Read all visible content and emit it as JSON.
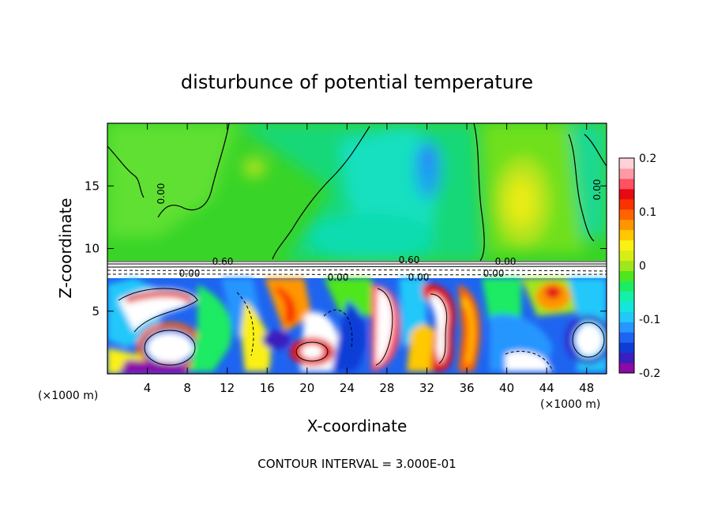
{
  "chart_data": {
    "type": "heatmap",
    "title": "disturbunce of potential temperature",
    "xlabel": "X-coordinate",
    "ylabel": "Z-coordinate",
    "x_unit_label": "(×1000 m)",
    "y_unit_label": "(×1000 m)",
    "xlim": [
      0,
      50
    ],
    "ylim": [
      0,
      20
    ],
    "x_ticks": [
      4,
      8,
      12,
      16,
      20,
      24,
      28,
      32,
      36,
      40,
      44,
      48
    ],
    "x_tick_labels": [
      "4",
      "8",
      "12",
      "16",
      "20",
      "24",
      "28",
      "32",
      "36",
      "40",
      "44",
      "48"
    ],
    "y_ticks": [
      5,
      10,
      15
    ],
    "y_tick_labels": [
      "5",
      "10",
      "15"
    ],
    "colorbar": {
      "range": [
        -0.2,
        0.2
      ],
      "tick_values": [
        0.2,
        0.1,
        0,
        -0.1,
        -0.2
      ],
      "tick_labels": [
        "0.2",
        "0.1",
        "0",
        "-0.1",
        "-0.2"
      ],
      "colors": [
        "#8c0aa5",
        "#3a1ebe",
        "#0f3cd7",
        "#1e64f0",
        "#2896ff",
        "#23c8fa",
        "#14e6dc",
        "#14f0aa",
        "#1eeb64",
        "#50e61e",
        "#a0e61e",
        "#d7ee14",
        "#faf014",
        "#ffc800",
        "#ff9600",
        "#ff6400",
        "#fa3200",
        "#e60a14",
        "#ff5064",
        "#ff9aa5",
        "#ffd2d7"
      ]
    },
    "contour_labels": [
      "0.00",
      "0.00",
      "0.00",
      "0.00",
      "0.00",
      "0.00",
      "0.60",
      "0.60",
      "0.00"
    ],
    "footer": "CONTOUR INTERVAL = 3.000E-01",
    "grid": false
  }
}
